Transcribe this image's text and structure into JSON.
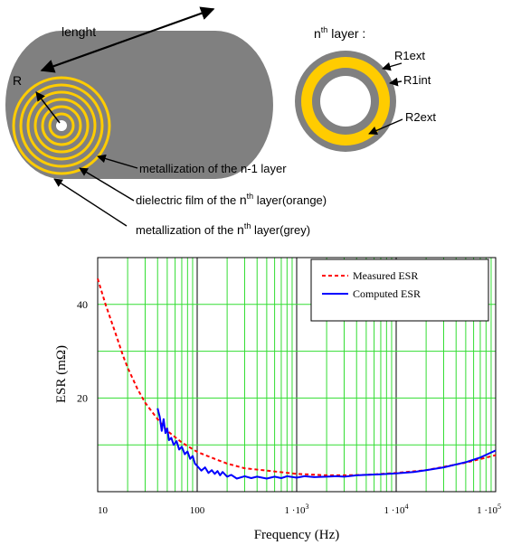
{
  "colors": {
    "cylinder": "#808080",
    "metal": "#808080",
    "film": "#ffcc00",
    "grid_green": "#33dd33",
    "measured": "#ff0000",
    "computed": "#0000ff"
  },
  "diagram": {
    "length_label": "lenght",
    "radius_label": "R",
    "layer_title_base": "n",
    "layer_title_sup": "th",
    "layer_title_rest": " layer :",
    "r1ext_label": "R1ext",
    "r1int_label": "R1int",
    "r2ext_label": "R2ext",
    "callout1": "metallization of the n-1 layer",
    "callout2_pre": "dielectric film of the ",
    "callout2_n": "n",
    "callout2_sup": "th",
    "callout2_post": " layer(orange)",
    "callout3_pre": "metallization of the ",
    "callout3_n": "n",
    "callout3_sup": "th",
    "callout3_post": " layer(grey)"
  },
  "chart_data": {
    "type": "line",
    "xscale": "log",
    "xlim": [
      10,
      100000
    ],
    "ylim": [
      0,
      50
    ],
    "xlabel": "Frequency (Hz)",
    "ylabel": "ESR (mΩ)",
    "xtick_labels": [
      {
        "v": 10,
        "base": "10",
        "sup": ""
      },
      {
        "v": 100,
        "base": "100",
        "sup": ""
      },
      {
        "v": 1000,
        "base": "1 ·10",
        "sup": "3"
      },
      {
        "v": 10000,
        "base": "1 ·10",
        "sup": "4"
      },
      {
        "v": 100000,
        "base": "1 ·10",
        "sup": "5"
      }
    ],
    "yticks": [
      20,
      40
    ],
    "grid": true,
    "legend_position": "top-right",
    "series": [
      {
        "name": "Measured ESR",
        "style": "dashed",
        "points": [
          [
            10,
            45.5
          ],
          [
            12,
            40
          ],
          [
            15,
            34
          ],
          [
            18,
            29
          ],
          [
            20,
            26.5
          ],
          [
            25,
            22
          ],
          [
            30,
            19
          ],
          [
            40,
            15.5
          ],
          [
            50,
            13
          ],
          [
            70,
            10.5
          ],
          [
            100,
            8.5
          ],
          [
            150,
            7
          ],
          [
            200,
            6
          ],
          [
            300,
            5
          ],
          [
            500,
            4.5
          ],
          [
            1000,
            3.8
          ],
          [
            2000,
            3.5
          ],
          [
            3000,
            3.5
          ],
          [
            5000,
            3.6
          ],
          [
            10000,
            4
          ],
          [
            20000,
            4.6
          ],
          [
            50000,
            6.2
          ],
          [
            100000,
            7.8
          ]
        ]
      },
      {
        "name": "Computed ESR",
        "style": "solid",
        "points": [
          [
            40,
            17.8
          ],
          [
            42,
            16
          ],
          [
            44,
            13
          ],
          [
            46,
            15.5
          ],
          [
            48,
            12.5
          ],
          [
            50,
            13.5
          ],
          [
            52,
            11
          ],
          [
            55,
            11.5
          ],
          [
            58,
            10
          ],
          [
            62,
            10.8
          ],
          [
            66,
            9
          ],
          [
            70,
            9.6
          ],
          [
            75,
            8
          ],
          [
            80,
            8.6
          ],
          [
            85,
            7
          ],
          [
            90,
            7.6
          ],
          [
            95,
            6
          ],
          [
            100,
            5.5
          ],
          [
            110,
            4.5
          ],
          [
            120,
            5.2
          ],
          [
            130,
            4
          ],
          [
            140,
            4.6
          ],
          [
            150,
            3.8
          ],
          [
            160,
            4.4
          ],
          [
            170,
            3.5
          ],
          [
            180,
            4.2
          ],
          [
            200,
            3.2
          ],
          [
            220,
            3.6
          ],
          [
            250,
            2.8
          ],
          [
            300,
            3.3
          ],
          [
            350,
            2.9
          ],
          [
            400,
            3.2
          ],
          [
            500,
            2.8
          ],
          [
            600,
            3.2
          ],
          [
            700,
            2.9
          ],
          [
            800,
            3.3
          ],
          [
            1000,
            3
          ],
          [
            1200,
            3.3
          ],
          [
            1500,
            3.1
          ],
          [
            2000,
            3.2
          ],
          [
            2500,
            3.3
          ],
          [
            3000,
            3.2
          ],
          [
            4000,
            3.5
          ],
          [
            5000,
            3.6
          ],
          [
            7000,
            3.7
          ],
          [
            10000,
            3.9
          ],
          [
            15000,
            4.2
          ],
          [
            20000,
            4.6
          ],
          [
            30000,
            5.2
          ],
          [
            50000,
            6.3
          ],
          [
            70000,
            7.3
          ],
          [
            100000,
            8.8
          ]
        ]
      }
    ]
  }
}
